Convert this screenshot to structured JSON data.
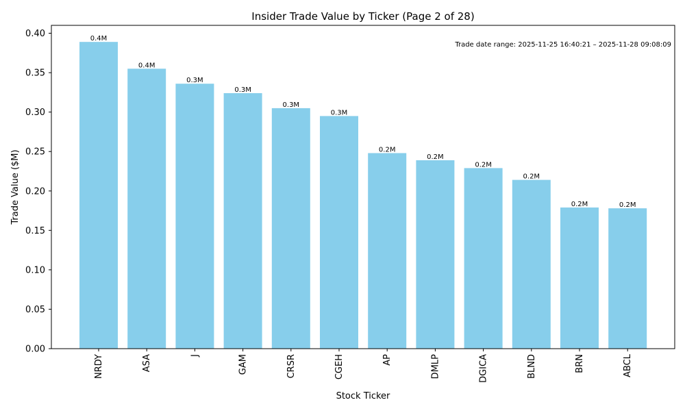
{
  "chart_data": {
    "type": "bar",
    "title": "Insider Trade Value by Ticker (Page 2 of 28)",
    "xlabel": "Stock Ticker",
    "ylabel": "Trade Value ($M)",
    "ylim": [
      0,
      0.41
    ],
    "yticks": [
      0.0,
      0.05,
      0.1,
      0.15,
      0.2,
      0.25,
      0.3,
      0.35,
      0.4
    ],
    "ytick_labels": [
      "0.00",
      "0.05",
      "0.10",
      "0.15",
      "0.20",
      "0.25",
      "0.30",
      "0.35",
      "0.40"
    ],
    "categories": [
      "NRDY",
      "ASA",
      "J",
      "GAM",
      "CRSR",
      "CGEH",
      "AP",
      "DMLP",
      "DGICA",
      "BLND",
      "BRN",
      "ABCL"
    ],
    "values": [
      0.389,
      0.355,
      0.336,
      0.324,
      0.305,
      0.295,
      0.248,
      0.239,
      0.229,
      0.214,
      0.179,
      0.178
    ],
    "bar_labels": [
      "0.4M",
      "0.4M",
      "0.3M",
      "0.3M",
      "0.3M",
      "0.3M",
      "0.2M",
      "0.2M",
      "0.2M",
      "0.2M",
      "0.2M",
      "0.2M"
    ],
    "bar_color": "#87ceeb",
    "annotation": "Trade date range: 2025-11-25 16:40:21 – 2025-11-28 09:08:09",
    "grid": false
  }
}
